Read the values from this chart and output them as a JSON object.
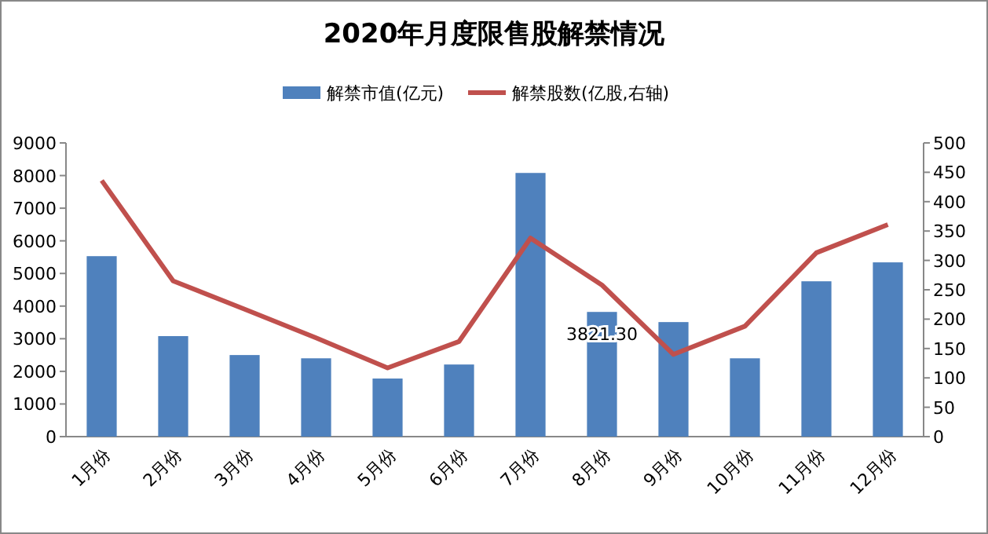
{
  "chart_data": {
    "type": "bar",
    "title": "2020年月度限售股解禁情况",
    "categories": [
      "1月份",
      "2月份",
      "3月份",
      "4月份",
      "5月份",
      "6月份",
      "7月份",
      "8月份",
      "9月份",
      "10月份",
      "11月份",
      "12月份"
    ],
    "series": [
      {
        "name": "解禁市值(亿元)",
        "color": "#4f81bd",
        "values": [
          5530,
          3080,
          2500,
          2400,
          1780,
          2210,
          8080,
          3821.3,
          3510,
          2400,
          4760,
          5340
        ],
        "value_labels": [
          null,
          null,
          null,
          null,
          null,
          null,
          null,
          "3821.30",
          null,
          null,
          null,
          null
        ]
      },
      {
        "name": "解禁股数(亿股,右轴)",
        "type": "line",
        "axis": "y2",
        "color": "#c0504d",
        "values": [
          436,
          265,
          217,
          168,
          117,
          162,
          338,
          258,
          140,
          188,
          313,
          361
        ]
      }
    ],
    "ylim": [
      0,
      9000
    ],
    "yticks": [
      0,
      1000,
      2000,
      3000,
      4000,
      5000,
      6000,
      7000,
      8000,
      9000
    ],
    "y2lim": [
      0,
      500
    ],
    "y2ticks": [
      0,
      50,
      100,
      150,
      200,
      250,
      300,
      350,
      400,
      450,
      500
    ],
    "legend": "top",
    "grid": false,
    "marker": "none"
  }
}
